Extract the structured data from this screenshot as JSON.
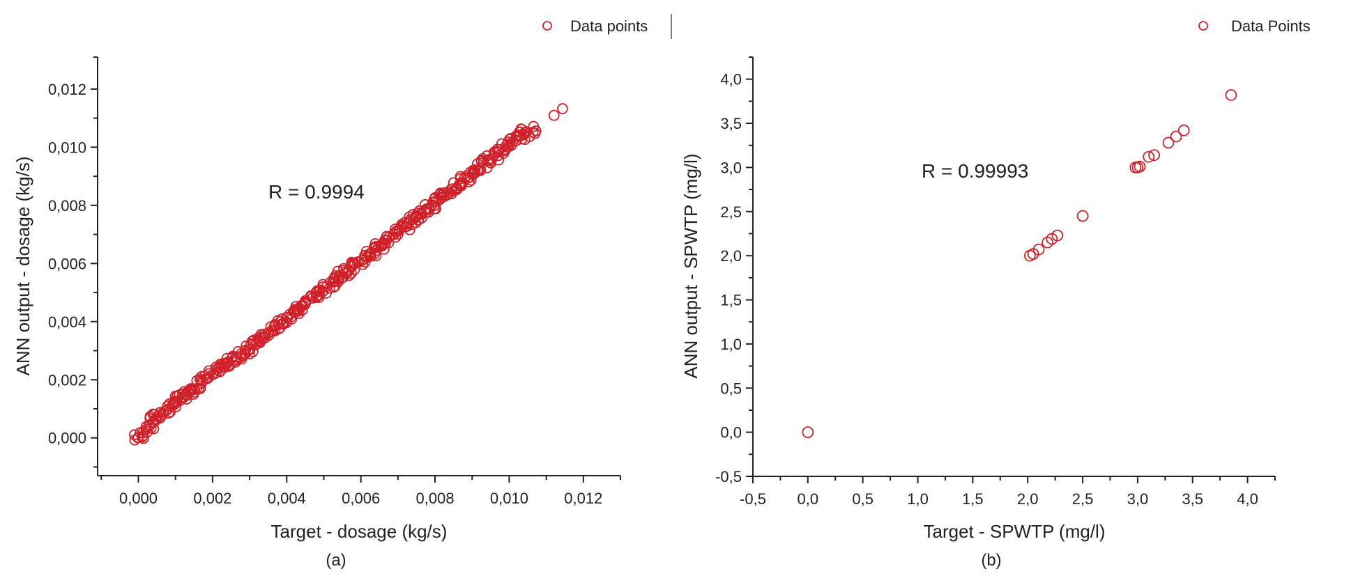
{
  "chart_data": [
    {
      "type": "scatter",
      "panel_label": "(a)",
      "xlabel": "Target - dosage (kg/s)",
      "ylabel": "ANN output - dosage (kg/s)",
      "annotation": "R = 0.9994",
      "legend": [
        "Data points"
      ],
      "legend_position": "top-right",
      "grid": false,
      "xlim": [
        -0.0011,
        0.013
      ],
      "ylim": [
        -0.0013,
        0.0131
      ],
      "x_ticks": [
        0.0,
        0.002,
        0.004,
        0.006,
        0.008,
        0.01,
        0.012
      ],
      "x_tick_labels": [
        "0,000",
        "0,002",
        "0,004",
        "0,006",
        "0,008",
        "0,010",
        "0,012"
      ],
      "y_ticks": [
        0.0,
        0.002,
        0.004,
        0.006,
        0.008,
        0.01,
        0.012
      ],
      "y_tick_labels": [
        "0,000",
        "0,002",
        "0,004",
        "0,006",
        "0,008",
        "0,010",
        "0,012"
      ],
      "marker": "open-circle",
      "color": "#d0202a",
      "series": [
        {
          "name": "Data points",
          "description": "Dense band of several hundred points along y = x from 0 to ~0.0106, plus two points near 0.0112-0.0115",
          "x": [
            0.0,
            0.0001,
            0.0002,
            0.0003,
            0.0004,
            0.0005,
            0.0006,
            0.0007,
            0.0008,
            0.0009,
            0.001,
            0.0011,
            0.0012,
            0.0013,
            0.0014,
            0.0015,
            0.0016,
            0.0017,
            0.0018,
            0.0019,
            0.002,
            0.0021,
            0.0022,
            0.0023,
            0.0024,
            0.0025,
            0.0026,
            0.0027,
            0.0028,
            0.0029,
            0.003,
            0.0031,
            0.0032,
            0.0033,
            0.0034,
            0.0035,
            0.0036,
            0.0037,
            0.0038,
            0.0039,
            0.004,
            0.0041,
            0.0042,
            0.0043,
            0.0044,
            0.0045,
            0.0046,
            0.0047,
            0.0048,
            0.0049,
            0.005,
            0.0051,
            0.0052,
            0.0053,
            0.0054,
            0.0055,
            0.0056,
            0.0057,
            0.0058,
            0.0059,
            0.006,
            0.0061,
            0.0062,
            0.0063,
            0.0064,
            0.0065,
            0.0066,
            0.0067,
            0.0068,
            0.0069,
            0.007,
            0.0071,
            0.0072,
            0.0073,
            0.0074,
            0.0075,
            0.0076,
            0.0077,
            0.0078,
            0.0079,
            0.008,
            0.0081,
            0.0082,
            0.0083,
            0.0084,
            0.0085,
            0.0086,
            0.0087,
            0.0088,
            0.0089,
            0.009,
            0.0091,
            0.0092,
            0.0093,
            0.0094,
            0.0095,
            0.0096,
            0.0097,
            0.0098,
            0.0099,
            0.01,
            0.0101,
            0.0102,
            0.0103,
            0.0104,
            0.0105,
            0.0106,
            0.0112,
            0.0115
          ],
          "y": [
            0.0,
            0.0001,
            0.0003,
            0.0004,
            0.0006,
            0.0007,
            0.0008,
            0.0009,
            0.001,
            0.0011,
            0.0012,
            0.0013,
            0.0014,
            0.0015,
            0.0016,
            0.0017,
            0.0018,
            0.0019,
            0.002,
            0.0021,
            0.0022,
            0.0023,
            0.0024,
            0.0025,
            0.0026,
            0.0026,
            0.0027,
            0.0028,
            0.0029,
            0.003,
            0.0031,
            0.0032,
            0.0033,
            0.0034,
            0.0035,
            0.0036,
            0.0037,
            0.0038,
            0.0039,
            0.004,
            0.0041,
            0.0042,
            0.0043,
            0.0044,
            0.0045,
            0.0046,
            0.0047,
            0.0048,
            0.0049,
            0.005,
            0.0051,
            0.0052,
            0.0053,
            0.0054,
            0.0055,
            0.0056,
            0.0057,
            0.0058,
            0.0059,
            0.006,
            0.0061,
            0.0062,
            0.0063,
            0.0064,
            0.0065,
            0.0066,
            0.0067,
            0.0068,
            0.0069,
            0.007,
            0.0071,
            0.0072,
            0.0073,
            0.0074,
            0.0075,
            0.0076,
            0.0077,
            0.0078,
            0.0079,
            0.008,
            0.0081,
            0.0082,
            0.0083,
            0.0084,
            0.0085,
            0.0086,
            0.0087,
            0.0088,
            0.0089,
            0.009,
            0.0091,
            0.0092,
            0.0093,
            0.0094,
            0.0095,
            0.0096,
            0.0097,
            0.0098,
            0.0099,
            0.01,
            0.0101,
            0.0102,
            0.0103,
            0.0104,
            0.0105,
            0.0105,
            0.0106,
            0.011,
            0.0113
          ]
        }
      ]
    },
    {
      "type": "scatter",
      "panel_label": "(b)",
      "xlabel": "Target - SPWTP (mg/l)",
      "ylabel": "ANN output - SPWTP (mg/l)",
      "annotation": "R = 0.99993",
      "legend": [
        "Data Points"
      ],
      "legend_position": "top-right",
      "grid": false,
      "xlim": [
        -0.5,
        4.25
      ],
      "ylim": [
        -0.5,
        4.25
      ],
      "x_ticks": [
        -0.5,
        0.0,
        0.5,
        1.0,
        1.5,
        2.0,
        2.5,
        3.0,
        3.5,
        4.0
      ],
      "x_tick_labels": [
        "-0,5",
        "0,0",
        "0,5",
        "1,0",
        "1,5",
        "2,0",
        "2,5",
        "3,0",
        "3,5",
        "4,0"
      ],
      "y_ticks": [
        -0.5,
        0.0,
        0.5,
        1.0,
        1.5,
        2.0,
        2.5,
        3.0,
        3.5,
        4.0
      ],
      "y_tick_labels": [
        "-0,5",
        "0,0",
        "0,5",
        "1,0",
        "1,5",
        "2,0",
        "2,5",
        "3,0",
        "3,5",
        "4,0"
      ],
      "marker": "open-circle",
      "color": "#d0202a",
      "series": [
        {
          "name": "Data Points",
          "x": [
            0.0,
            2.02,
            2.05,
            2.1,
            2.18,
            2.22,
            2.27,
            2.5,
            2.98,
            3.0,
            3.02,
            3.1,
            3.15,
            3.28,
            3.35,
            3.42,
            3.85
          ],
          "y": [
            0.0,
            2.0,
            2.02,
            2.07,
            2.15,
            2.19,
            2.23,
            2.45,
            3.0,
            3.0,
            3.01,
            3.12,
            3.14,
            3.28,
            3.35,
            3.42,
            3.82
          ]
        }
      ]
    }
  ],
  "panels": [
    {
      "legend_label": "Data points",
      "annotation": "R = 0.9994",
      "xlabel": "Target - dosage (kg/s)",
      "ylabel": "ANN output - dosage (kg/s)",
      "panel_label": "(a)"
    },
    {
      "legend_label": "Data Points",
      "annotation": "R = 0.99993",
      "xlabel": "Target - SPWTP (mg/l)",
      "ylabel": "ANN output - SPWTP (mg/l)",
      "panel_label": "(b)"
    }
  ]
}
